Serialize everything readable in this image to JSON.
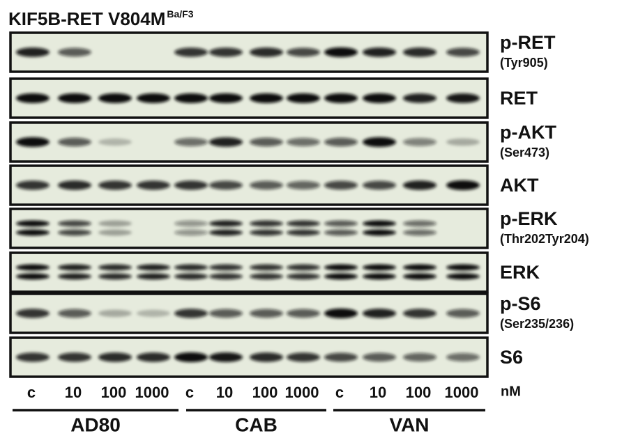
{
  "title": {
    "text": "KIF5B-RET V804M",
    "superscript": "Ba/F3"
  },
  "panels": [
    {
      "label": "p-RET",
      "sublabel": "(Tyr905)"
    },
    {
      "label": "RET"
    },
    {
      "label": "p-AKT",
      "sublabel": "(Ser473)"
    },
    {
      "label": "AKT"
    },
    {
      "label": "p-ERK",
      "sublabel": "(Thr202Tyr204)"
    },
    {
      "label": "ERK"
    },
    {
      "label": "p-S6",
      "sublabel": "(Ser235/236)"
    },
    {
      "label": "S6"
    }
  ],
  "lanes": [
    "c",
    "10",
    "100",
    "1000",
    "c",
    "10",
    "100",
    "1000",
    "c",
    "10",
    "100",
    "1000"
  ],
  "unit": "nM",
  "groups": [
    "AD80",
    "CAB",
    "VAN"
  ]
}
